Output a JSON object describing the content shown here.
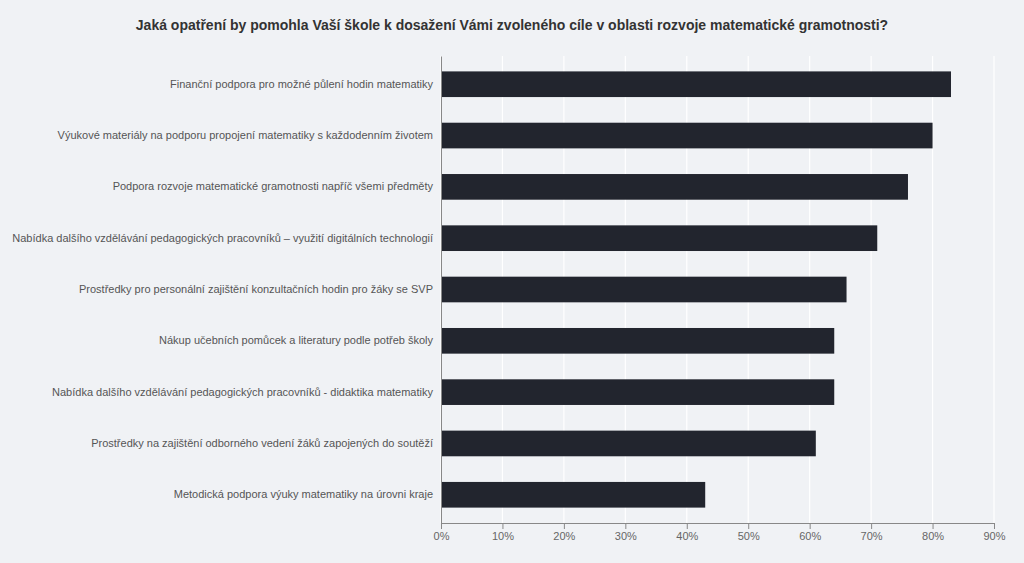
{
  "chart_data": {
    "type": "bar",
    "orientation": "horizontal",
    "title": "Jaká opatření by pomohla Vaší škole k dosažení Vámi zvoleného cíle v oblasti rozvoje matematické gramotnosti?",
    "categories": [
      "Metodická podpora výuky matematiky na úrovni kraje",
      "Prostředky na zajištění odborného vedení žáků zapojených do soutěží",
      "Nabídka dalšího vzdělávání pedagogických pracovníků - didaktika matematiky",
      "Nákup učebních pomůcek a literatury podle potřeb školy",
      "Prostředky pro personální zajištění konzultačních hodin pro žáky se SVP",
      "Nabídka dalšího vzdělávání pedagogických pracovníků – využití digitálních technologií",
      "Podpora rozvoje matematické gramotnosti napříč všemi předměty",
      "Výukové materiály na podporu propojení matematiky s každodenním životem",
      "Finanční podpora pro možné půlení hodin matematiky"
    ],
    "values": [
      0.43,
      0.61,
      0.64,
      0.64,
      0.66,
      0.71,
      0.76,
      0.8,
      0.83
    ],
    "color": "#22252e",
    "xlim": [
      0,
      0.9
    ],
    "xticks": [
      {
        "value": 0.0,
        "label": "0%"
      },
      {
        "value": 0.1,
        "label": "10%"
      },
      {
        "value": 0.2,
        "label": "20%"
      },
      {
        "value": 0.3,
        "label": "30%"
      },
      {
        "value": 0.4,
        "label": "40%"
      },
      {
        "value": 0.5,
        "label": "50%"
      },
      {
        "value": 0.6,
        "label": "60%"
      },
      {
        "value": 0.7,
        "label": "70%"
      },
      {
        "value": 0.8,
        "label": "80%"
      },
      {
        "value": 0.9,
        "label": "90%"
      }
    ],
    "grid": true
  }
}
